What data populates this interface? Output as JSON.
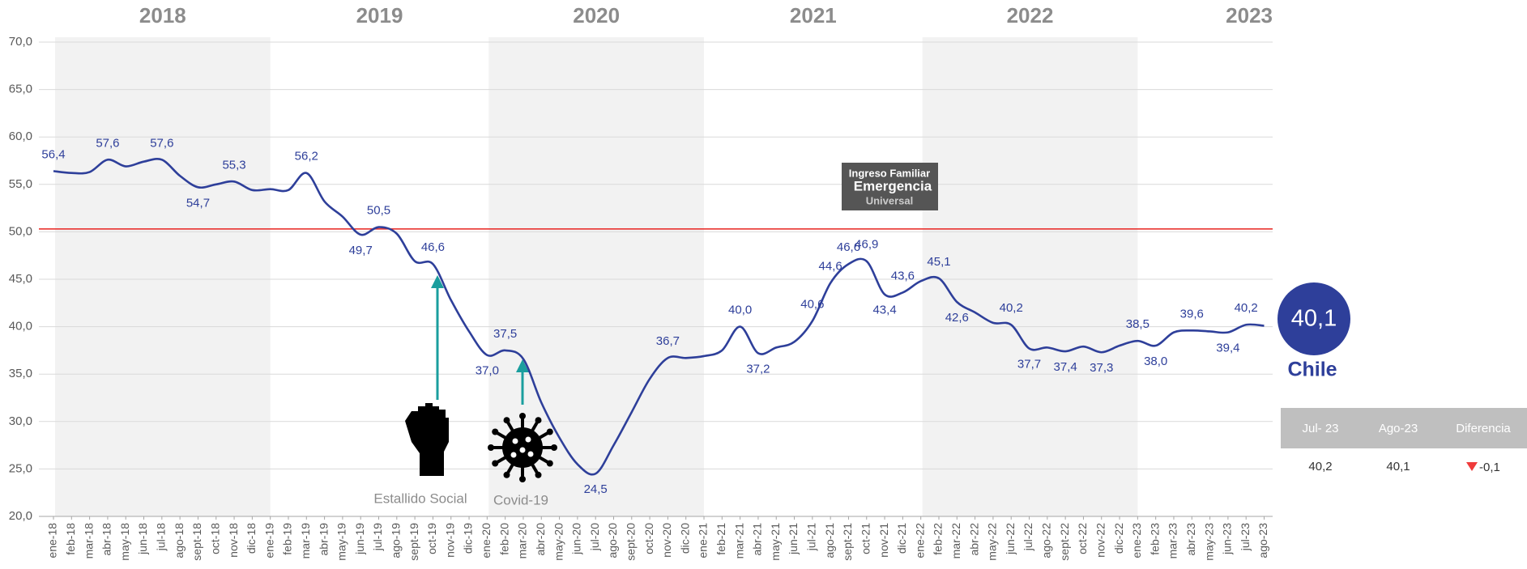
{
  "chart_data": {
    "type": "line",
    "years": [
      "2018",
      "2019",
      "2020",
      "2021",
      "2022",
      "2023"
    ],
    "categories": [
      "ene-18",
      "feb-18",
      "mar-18",
      "abr-18",
      "may-18",
      "jun-18",
      "jul-18",
      "ago-18",
      "sept-18",
      "oct-18",
      "nov-18",
      "dic-18",
      "ene-19",
      "feb-19",
      "mar-19",
      "abr-19",
      "may-19",
      "jun-19",
      "jul-19",
      "ago-19",
      "sept-19",
      "oct-19",
      "nov-19",
      "dic-19",
      "ene-20",
      "feb-20",
      "mar-20",
      "abr-20",
      "may-20",
      "jun-20",
      "jul-20",
      "ago-20",
      "sept-20",
      "oct-20",
      "nov-20",
      "dic-20",
      "ene-21",
      "feb-21",
      "mar-21",
      "abr-21",
      "may-21",
      "jun-21",
      "jul-21",
      "ago-21",
      "sept-21",
      "oct-21",
      "nov-21",
      "dic-21",
      "ene-22",
      "feb-22",
      "mar-22",
      "abr-22",
      "may-22",
      "jun-22",
      "jul-22",
      "ago-22",
      "sept-22",
      "oct-22",
      "nov-22",
      "dic-22",
      "ene-23",
      "feb-23",
      "mar-23",
      "abr-23",
      "may-23",
      "jun-23",
      "jul-23",
      "ago-23"
    ],
    "series": [
      {
        "name": "Chile",
        "color": "#2e3f9a",
        "values": [
          56.4,
          56.2,
          56.3,
          57.6,
          56.9,
          57.4,
          57.6,
          55.9,
          54.7,
          55.0,
          55.3,
          54.4,
          54.5,
          54.4,
          56.2,
          53.2,
          51.6,
          49.7,
          50.5,
          49.8,
          46.9,
          46.6,
          42.8,
          39.5,
          37.0,
          37.5,
          36.6,
          32.0,
          28.3,
          25.5,
          24.5,
          27.5,
          31.0,
          34.5,
          36.7,
          36.7,
          36.9,
          37.5,
          40.0,
          37.2,
          37.8,
          38.4,
          40.6,
          44.6,
          46.6,
          46.9,
          43.4,
          43.6,
          44.8,
          45.1,
          42.6,
          41.5,
          40.4,
          40.2,
          37.7,
          37.8,
          37.4,
          37.9,
          37.3,
          38.0,
          38.5,
          38.0,
          39.4,
          39.6,
          39.5,
          39.4,
          40.2,
          40.1
        ],
        "value_labels": [
          "56,4",
          null,
          null,
          "57,6",
          null,
          null,
          "57,6",
          null,
          "54,7",
          null,
          "55,3",
          null,
          null,
          null,
          "56,2",
          null,
          null,
          "49,7",
          "50,5",
          null,
          null,
          "46,6",
          null,
          null,
          "37,0",
          "37,5",
          null,
          null,
          null,
          null,
          "24,5",
          null,
          null,
          null,
          "36,7",
          null,
          null,
          null,
          "40,0",
          "37,2",
          null,
          null,
          "40,6",
          "44,6",
          "46,6",
          "46,9",
          "43,4",
          "43,6",
          null,
          "45,1",
          "42,6",
          null,
          null,
          "40,2",
          "37,7",
          null,
          "37,4",
          null,
          "37,3",
          null,
          "38,5",
          "38,0",
          null,
          "39,6",
          null,
          "39,4",
          "40,2",
          null
        ]
      }
    ],
    "reference_line": {
      "value": 50.3,
      "color": "#e8231f"
    },
    "ylim": [
      20,
      70
    ],
    "yticks": [
      {
        "value": 20,
        "label": "20,0"
      },
      {
        "value": 25,
        "label": "25,0"
      },
      {
        "value": 30,
        "label": "30,0"
      },
      {
        "value": 35,
        "label": "35,0"
      },
      {
        "value": 40,
        "label": "40,0"
      },
      {
        "value": 45,
        "label": "45,0"
      },
      {
        "value": 50,
        "label": "50,0"
      },
      {
        "value": 55,
        "label": "55,0"
      },
      {
        "value": 60,
        "label": "60,0"
      },
      {
        "value": 65,
        "label": "65,0"
      },
      {
        "value": 70,
        "label": "70,0"
      }
    ],
    "grid": true,
    "annotations": [
      "Estallido Social",
      "Covid-19"
    ],
    "logo": [
      "Ingreso Familiar",
      "Emergencia",
      "Universal"
    ],
    "highlight": {
      "label": "40,1",
      "name": "Chile"
    },
    "summary_table": {
      "headers": [
        "Jul- 23",
        "Ago-23",
        "Diferencia"
      ],
      "cells": [
        "40,2",
        "40,1",
        "-0,1"
      ]
    }
  }
}
